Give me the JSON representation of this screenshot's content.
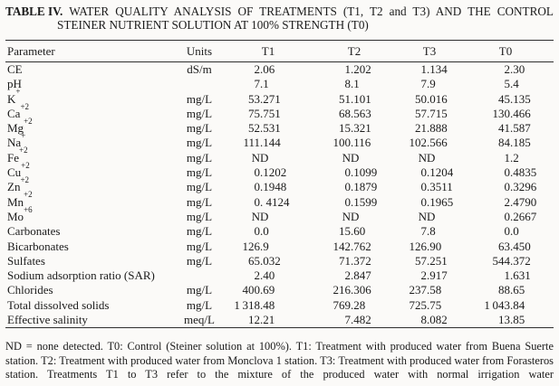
{
  "title": {
    "label": "TABLE IV.",
    "line1": "WATER QUALITY ANALYSIS OF TREATMENTS (T1, T2 and T3) AND THE CONTROL",
    "line2": "STEINER NUTRIENT SOLUTION AT 100% STRENGTH (T0)"
  },
  "table": {
    "headers": [
      "Parameter",
      "Units",
      "T1",
      "T2",
      "T3",
      "T0"
    ],
    "rows": [
      {
        "param": "CE",
        "sup": "",
        "units": "dS/m",
        "values": [
          "2.06",
          "1.202",
          "1.134",
          "2.30"
        ]
      },
      {
        "param": "pH",
        "sup": "",
        "units": "",
        "values": [
          "7.1",
          "8.1",
          "7.9",
          "5.4"
        ]
      },
      {
        "param": "K",
        "sup": "+",
        "units": "mg/L",
        "values": [
          "53.271",
          "51.101",
          "50.016",
          "45.135"
        ]
      },
      {
        "param": "Ca",
        "sup": "+2",
        "units": "mg/L",
        "values": [
          "75.751",
          "68.563",
          "57.715",
          "130.466"
        ]
      },
      {
        "param": "Mg",
        "sup": "+2",
        "units": "mg/L",
        "values": [
          "52.531",
          "15.321",
          "21.888",
          "41.587"
        ]
      },
      {
        "param": "Na",
        "sup": "+",
        "units": "mg/L",
        "values": [
          "111.144",
          "100.116",
          "102.566",
          "84.185"
        ]
      },
      {
        "param": "Fe",
        "sup": "+2",
        "units": "mg/L",
        "values": [
          "ND",
          "ND",
          "ND",
          "1.2"
        ]
      },
      {
        "param": "Cu",
        "sup": "+2",
        "units": "mg/L",
        "values": [
          "0.1202",
          "0.1099",
          "0.1204",
          "0.4835"
        ]
      },
      {
        "param": "Zn",
        "sup": "+2",
        "units": "mg/L",
        "values": [
          "0.1948",
          "0.1879",
          "0.3511",
          "0.3296"
        ]
      },
      {
        "param": "Mn",
        "sup": "+2",
        "units": "mg/L",
        "values": [
          "0. 4124",
          "0.1599",
          "0.1965",
          "2.4790"
        ]
      },
      {
        "param": "Mo",
        "sup": "+6",
        "units": "mg/L",
        "values": [
          "ND",
          "ND",
          "ND",
          "0.2667"
        ]
      },
      {
        "param": "Carbonates",
        "sup": "",
        "units": "mg/L",
        "values": [
          "0.0",
          "15.60",
          "7.8",
          "0.0"
        ]
      },
      {
        "param": "Bicarbonates",
        "sup": "",
        "units": "mg/L",
        "values": [
          "126.9",
          "142.762",
          "126.90",
          "63.450"
        ]
      },
      {
        "param": "Sulfates",
        "sup": "",
        "units": "mg/L",
        "values": [
          "65.032",
          "71.372",
          "57.251",
          "544.372"
        ]
      },
      {
        "param": "Sodium adsorption ratio (SAR)",
        "sup": "",
        "units": "",
        "values": [
          "2.40",
          "2.847",
          "2.917",
          "1.631"
        ]
      },
      {
        "param": "Chlorides",
        "sup": "",
        "units": "mg/L",
        "values": [
          "400.69",
          "216.306",
          "237.58",
          "88.65"
        ]
      },
      {
        "param": "Total dissolved solids",
        "sup": "",
        "units": "mg/L",
        "values": [
          "1 318.48",
          "769.28",
          "725.75",
          "1 043.84"
        ]
      },
      {
        "param": "Effective salinity",
        "sup": "",
        "units": "meq/L",
        "values": [
          "12.21",
          "7.482",
          "8.082",
          "13.85"
        ]
      }
    ]
  },
  "footnote": "ND = none detected. T0: Control (Steiner solution at 100%). T1: Treatment with produced water from Buena Suerte station. T2: Treatment with produced water from Monclova 1 station. T3: Treatment with produced water from Forasteros station. Treatments T1 to T3 refer to the mixture of the produced water with normal irrigation water"
}
